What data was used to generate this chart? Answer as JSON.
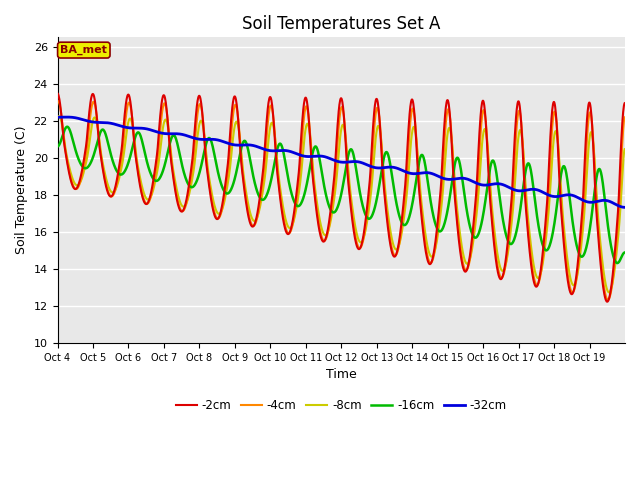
{
  "title": "Soil Temperatures Set A",
  "xlabel": "Time",
  "ylabel": "Soil Temperature (C)",
  "ylim": [
    10,
    26.5
  ],
  "background_color": "#ffffff",
  "plot_bg_color": "#e8e8e8",
  "annotation_text": "BA_met",
  "annotation_color": "#8B0000",
  "annotation_bg": "#eeee00",
  "series_labels": [
    "-2cm",
    "-4cm",
    "-8cm",
    "-16cm",
    "-32cm"
  ],
  "series_colors": [
    "#dd0000",
    "#ff8800",
    "#cccc00",
    "#00bb00",
    "#0000dd"
  ],
  "xtick_labels": [
    "Oct 4",
    "Oct 5",
    "Oct 6",
    "Oct 7",
    "Oct 8",
    "Oct 9",
    "Oct 10",
    "Oct 11",
    "Oct 12",
    "Oct 13",
    "Oct 14",
    "Oct 15",
    "Oct 16",
    "Oct 17",
    "Oct 18",
    "Oct 19"
  ],
  "n_days": 16,
  "title_fontsize": 12,
  "lw_shallow": 1.5,
  "lw_deep": 2.0
}
